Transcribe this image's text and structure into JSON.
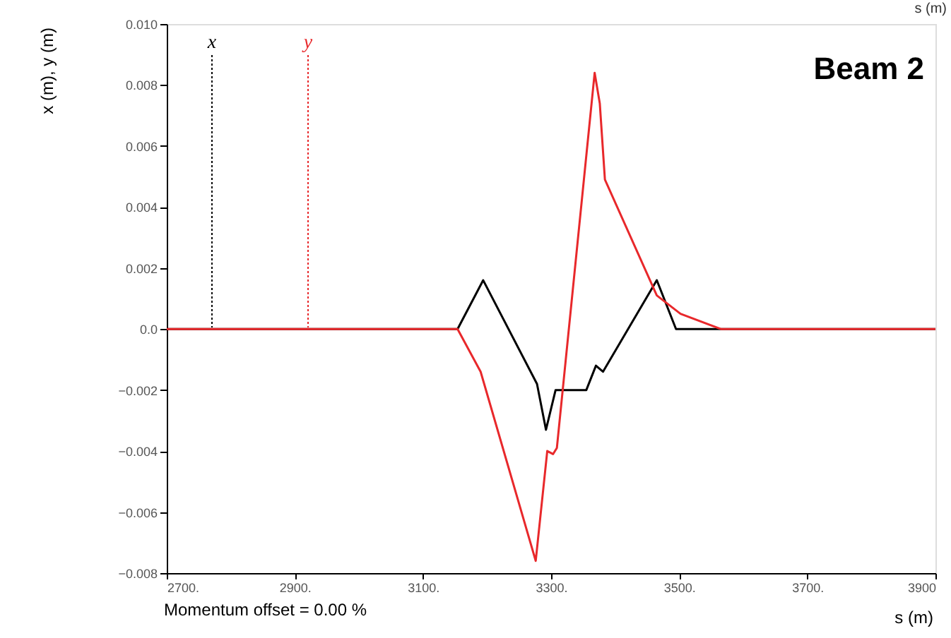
{
  "chart_data": {
    "type": "line",
    "xlabel": "s (m)",
    "ylabel": "x (m), y (m)",
    "annotations": [
      "Beam 2",
      "Momentum offset =    0.00 %",
      "s (m)"
    ],
    "xlim": [
      2700,
      3900
    ],
    "xticks": [
      {
        "value": 2700,
        "label": "2700."
      },
      {
        "value": 2900,
        "label": "2900."
      },
      {
        "value": 3100,
        "label": "3100."
      },
      {
        "value": 3300,
        "label": "3300."
      },
      {
        "value": 3500,
        "label": "3500."
      },
      {
        "value": 3700,
        "label": "3700."
      },
      3900
    ],
    "ylim": [
      -0.008,
      0.01
    ],
    "yticks": [
      -0.008,
      -0.006,
      -0.004,
      -0.002,
      {
        "value": 0,
        "label": "0.0"
      },
      0.002,
      0.004,
      0.006,
      0.008,
      {
        "value": 0.01,
        "label": "0.010"
      }
    ],
    "grid": false,
    "legend": "top left",
    "line_style": "solid",
    "marker": "none",
    "series": [
      {
        "name": "x",
        "color": "#000000",
        "x": [
          2700,
          3154,
          3194,
          3278,
          3292,
          3307,
          3355,
          3370,
          3381,
          3465,
          3495,
          3565,
          3900
        ],
        "values": [
          0,
          0,
          0.0016,
          -0.0018,
          -0.0033,
          -0.002,
          -0.002,
          -0.0012,
          -0.0014,
          0.0016,
          0,
          0,
          0
        ]
      },
      {
        "name": "y",
        "color": "#e8282b",
        "x": [
          2700,
          3154,
          3190,
          3276,
          3294,
          3303,
          3309,
          3368,
          3376,
          3384,
          3465,
          3502,
          3565,
          3900
        ],
        "values": [
          0,
          0,
          -0.0014,
          -0.0076,
          -0.004,
          -0.0041,
          -0.0039,
          0.0084,
          0.0074,
          0.0049,
          0.0011,
          0.0005,
          0,
          0
        ]
      }
    ]
  }
}
